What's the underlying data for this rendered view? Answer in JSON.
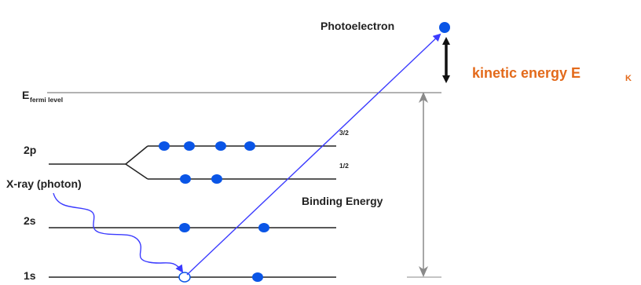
{
  "labels": {
    "photoelectron": "Photoelectron",
    "kinetic_energy": "kinetic energy E",
    "kinetic_sub": "K",
    "fermi_main": "E",
    "fermi_sub": "fermi level",
    "level_2p": "2p",
    "level_2s": "2s",
    "level_1s": "1s",
    "xray": "X-ray (photon)",
    "binding_energy": "Binding Energy",
    "sub_3_2": "3/2",
    "sub_1_2": "1/2"
  },
  "colors": {
    "electron": "#0a55e6",
    "arrow": "#3b3bff",
    "kinetic": "#e36a1b",
    "line": "#222222",
    "binding_arrow": "#8a8a8a"
  }
}
